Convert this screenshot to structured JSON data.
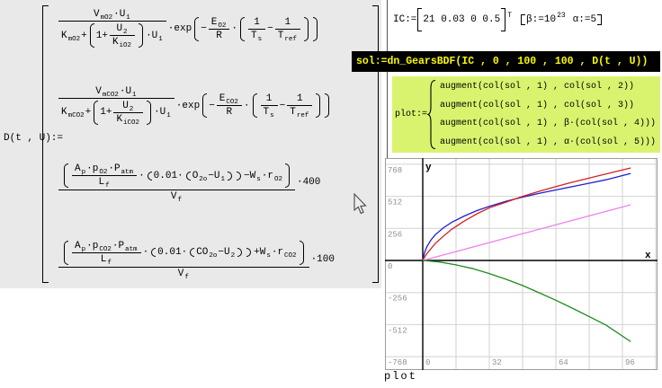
{
  "regions": {
    "matrix": {
      "lhs": "D(t , U):=",
      "r1": [
        "V",
        "mO2",
        "·U",
        "1",
        "K",
        "mO2",
        "+",
        "1+",
        "U",
        "2",
        "K",
        "iO2",
        "·U",
        "1",
        "·exp",
        "−",
        "E",
        "O2",
        "R",
        "·",
        "1",
        "T",
        "s",
        "−",
        "1",
        "T",
        "ref"
      ],
      "r2": [
        "V",
        "mCO2",
        "·U",
        "1",
        "K",
        "mCO2",
        "+",
        "1+",
        "U",
        "2",
        "K",
        "iCO2",
        "·U",
        "1",
        "·exp",
        "−",
        "E",
        "CO2",
        "R",
        "·",
        "1",
        "T",
        "s",
        "−",
        "1",
        "T",
        "ref"
      ],
      "r3": [
        "A",
        "p",
        "·p",
        "O2",
        "·P",
        "atm",
        "L",
        "f",
        "·",
        "0.01·",
        "O",
        "2o",
        "−U",
        "1",
        "−W",
        "s",
        "·r",
        "O2",
        "V",
        "f",
        "·400"
      ],
      "r4": [
        "A",
        "p",
        "·p",
        "CO2",
        "·P",
        "atm",
        "L",
        "f",
        "·",
        "0.01·",
        "CO",
        "2o",
        "−U",
        "2",
        "+W",
        "s",
        "·r",
        "CO2",
        "V",
        "f",
        "·100"
      ]
    },
    "ic": {
      "label": "IC:=",
      "vector": "21 0.03 0 0.5",
      "transpose": "T",
      "beta": "β:=10",
      "beta_exp": "23",
      "alpha": "α:=5"
    },
    "sol": {
      "text": "sol:=dn_GearsBDF(IC , 0 , 100 , 100 , D(t , U))"
    },
    "plotdef": {
      "label": "plot:=",
      "lines": [
        "augment(col(sol , 1) , col(sol , 2))",
        "augment(col(sol , 1) , col(sol , 3))",
        "augment(col(sol , 1) , β·(col(sol , 4)))",
        "augment(col(sol , 1) , α·(col(sol , 5)))"
      ]
    },
    "plot_caption": "plot"
  },
  "chart_data": {
    "type": "line",
    "title": "",
    "xlabel": "x",
    "ylabel": "y",
    "xlim": [
      -18,
      113
    ],
    "ylim": [
      -880,
      830
    ],
    "xticks": [
      0,
      32,
      64,
      96
    ],
    "yticks": [
      768,
      512,
      256,
      0,
      -256,
      -512,
      -768
    ],
    "grid": true,
    "legend_position": "none",
    "axis_color": "#000000",
    "grid_color": "#d2d2d2",
    "tick_label_color": "#8f8f8f",
    "series": [
      {
        "name": "col-sol-2-vs-col-sol-1",
        "color": "#2020cc",
        "x": [
          0,
          1,
          2,
          4,
          6,
          10,
          14,
          20,
          26,
          32,
          40,
          48,
          56,
          64,
          72,
          80,
          88,
          100
        ],
        "y": [
          0,
          70,
          110,
          165,
          205,
          262,
          305,
          355,
          398,
          432,
          472,
          506,
          536,
          563,
          590,
          617,
          644,
          695
        ]
      },
      {
        "name": "col-sol-3-vs-col-sol-1",
        "color": "#d42020",
        "x": [
          0,
          1,
          2,
          4,
          6,
          10,
          14,
          20,
          26,
          32,
          40,
          48,
          56,
          64,
          72,
          80,
          88,
          100
        ],
        "y": [
          0,
          30,
          55,
          95,
          135,
          195,
          250,
          315,
          372,
          420,
          465,
          512,
          552,
          590,
          625,
          658,
          690,
          739
        ]
      },
      {
        "name": "beta-col-sol-4-vs-col-sol-1",
        "color": "#ee82ee",
        "x": [
          0,
          100
        ],
        "y": [
          0,
          445
        ]
      },
      {
        "name": "alpha-col-sol-5-vs-col-sol-1",
        "color": "#1e8a1e",
        "x": [
          0,
          8,
          16,
          24,
          32,
          40,
          48,
          56,
          64,
          72,
          80,
          88,
          100
        ],
        "y": [
          0,
          -12,
          -35,
          -65,
          -105,
          -150,
          -200,
          -258,
          -318,
          -382,
          -448,
          -515,
          -648
        ]
      }
    ]
  }
}
